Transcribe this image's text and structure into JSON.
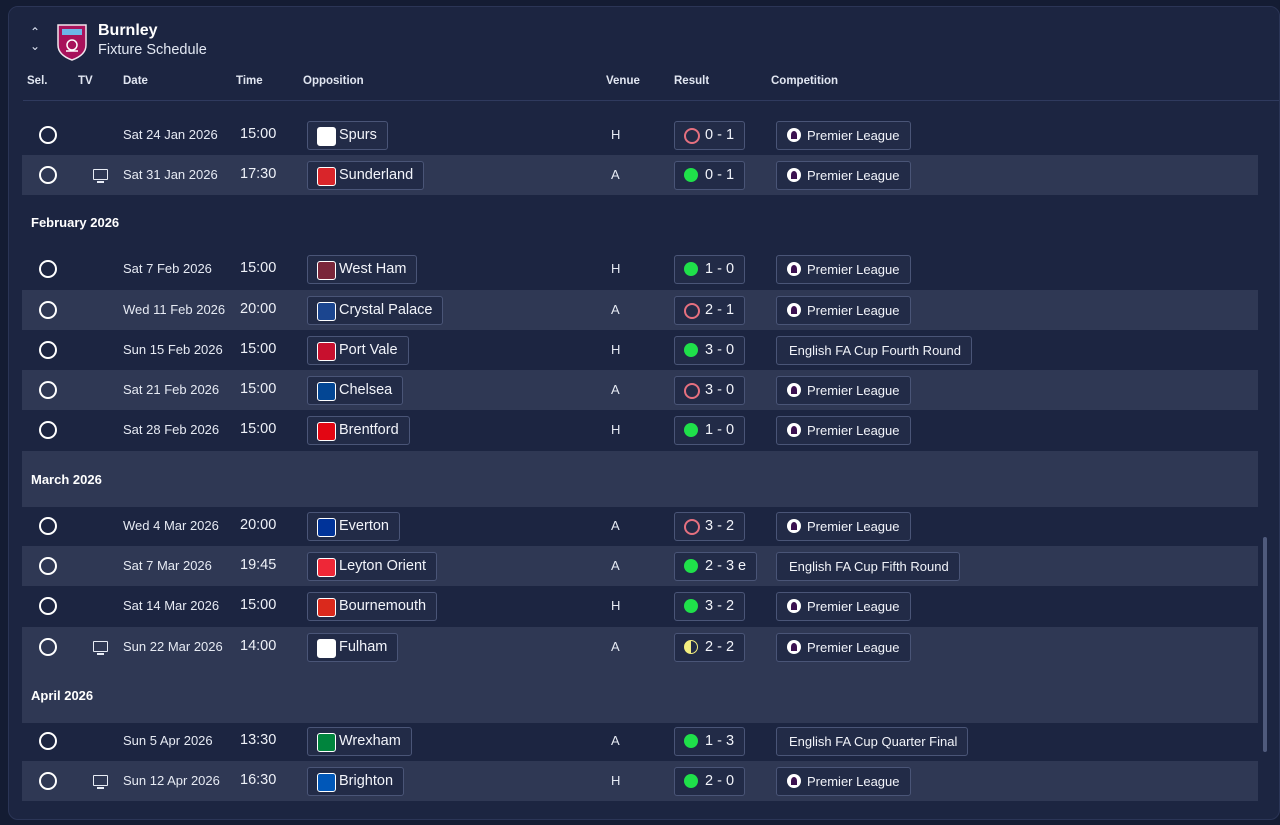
{
  "header": {
    "club_name": "Burnley",
    "subtitle": "Fixture Schedule",
    "up_icon": "chevron-up-icon",
    "down_icon": "chevron-down-icon"
  },
  "columns": {
    "sel": "Sel.",
    "tv": "TV",
    "date": "Date",
    "time": "Time",
    "opposition": "Opposition",
    "venue": "Venue",
    "result": "Result",
    "competition": "Competition"
  },
  "colors": {
    "win": "#1fe04a",
    "loss": "#e5707f",
    "draw": "#f3ee7f",
    "background": "#1c2541",
    "row_alt": "#2f3854"
  },
  "months": {
    "feb": "February 2026",
    "mar": "March 2026",
    "apr": "April 2026"
  },
  "fixtures": [
    {
      "tv": false,
      "date": "Sat 24 Jan 2026",
      "time": "15:00",
      "opponent": "Spurs",
      "venue": "H",
      "result": "0 - 1",
      "outcome": "loss",
      "competition": "Premier League"
    },
    {
      "tv": true,
      "date": "Sat 31 Jan 2026",
      "time": "17:30",
      "opponent": "Sunderland",
      "venue": "A",
      "result": "0 - 1",
      "outcome": "win",
      "competition": "Premier League"
    },
    {
      "tv": false,
      "date": "Sat 7 Feb 2026",
      "time": "15:00",
      "opponent": "West Ham",
      "venue": "H",
      "result": "1 - 0",
      "outcome": "win",
      "competition": "Premier League"
    },
    {
      "tv": false,
      "date": "Wed 11 Feb 2026",
      "time": "20:00",
      "opponent": "Crystal Palace",
      "venue": "A",
      "result": "2 - 1",
      "outcome": "loss",
      "competition": "Premier League"
    },
    {
      "tv": false,
      "date": "Sun 15 Feb 2026",
      "time": "15:00",
      "opponent": "Port Vale",
      "venue": "H",
      "result": "3 - 0",
      "outcome": "win",
      "competition": "English FA Cup Fourth Round"
    },
    {
      "tv": false,
      "date": "Sat 21 Feb 2026",
      "time": "15:00",
      "opponent": "Chelsea",
      "venue": "A",
      "result": "3 - 0",
      "outcome": "loss",
      "competition": "Premier League"
    },
    {
      "tv": false,
      "date": "Sat 28 Feb 2026",
      "time": "15:00",
      "opponent": "Brentford",
      "venue": "H",
      "result": "1 - 0",
      "outcome": "win",
      "competition": "Premier League"
    },
    {
      "tv": false,
      "date": "Wed 4 Mar 2026",
      "time": "20:00",
      "opponent": "Everton",
      "venue": "A",
      "result": "3 - 2",
      "outcome": "loss",
      "competition": "Premier League"
    },
    {
      "tv": false,
      "date": "Sat 7 Mar 2026",
      "time": "19:45",
      "opponent": "Leyton Orient",
      "venue": "A",
      "result": "2 - 3 e",
      "outcome": "win",
      "competition": "English FA Cup Fifth Round"
    },
    {
      "tv": false,
      "date": "Sat 14 Mar 2026",
      "time": "15:00",
      "opponent": "Bournemouth",
      "venue": "H",
      "result": "3 - 2",
      "outcome": "win",
      "competition": "Premier League"
    },
    {
      "tv": true,
      "date": "Sun 22 Mar 2026",
      "time": "14:00",
      "opponent": "Fulham",
      "venue": "A",
      "result": "2 - 2",
      "outcome": "draw",
      "competition": "Premier League"
    },
    {
      "tv": false,
      "date": "Sun 5 Apr 2026",
      "time": "13:30",
      "opponent": "Wrexham",
      "venue": "A",
      "result": "1 - 3",
      "outcome": "win",
      "competition": "English FA Cup Quarter Final"
    },
    {
      "tv": true,
      "date": "Sun 12 Apr 2026",
      "time": "16:30",
      "opponent": "Brighton",
      "venue": "H",
      "result": "2 - 0",
      "outcome": "win",
      "competition": "Premier League"
    }
  ]
}
